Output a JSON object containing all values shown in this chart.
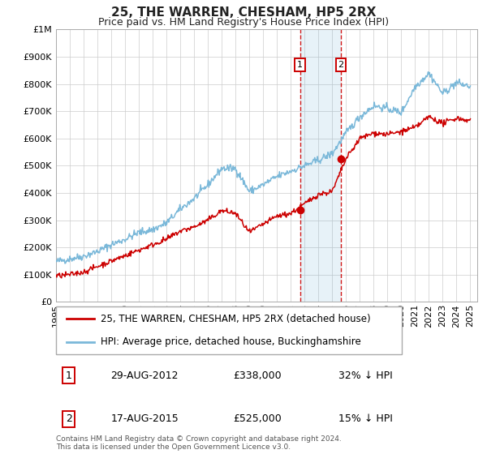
{
  "title": "25, THE WARREN, CHESHAM, HP5 2RX",
  "subtitle": "Price paid vs. HM Land Registry's House Price Index (HPI)",
  "legend_entry1": "25, THE WARREN, CHESHAM, HP5 2RX (detached house)",
  "legend_entry2": "HPI: Average price, detached house, Buckinghamshire",
  "footnote1": "Contains HM Land Registry data © Crown copyright and database right 2024.",
  "footnote2": "This data is licensed under the Open Government Licence v3.0.",
  "transaction1_label": "1",
  "transaction1_date": "29-AUG-2012",
  "transaction1_price": "£338,000",
  "transaction1_hpi": "32% ↓ HPI",
  "transaction2_label": "2",
  "transaction2_date": "17-AUG-2015",
  "transaction2_price": "£525,000",
  "transaction2_hpi": "15% ↓ HPI",
  "hpi_color": "#7ab8d9",
  "price_color": "#cc0000",
  "marker_color": "#cc0000",
  "transaction1_x": 2012.66,
  "transaction1_y": 338000,
  "transaction2_x": 2015.63,
  "transaction2_y": 525000,
  "shaded_region_start": 2012.66,
  "shaded_region_end": 2015.63,
  "vline1_x": 2012.66,
  "vline2_x": 2015.63,
  "ylim": [
    0,
    1000000
  ],
  "xlim_start": 1995,
  "xlim_end": 2025.5,
  "yticks": [
    0,
    100000,
    200000,
    300000,
    400000,
    500000,
    600000,
    700000,
    800000,
    900000,
    1000000
  ],
  "ytick_labels": [
    "£0",
    "£100K",
    "£200K",
    "£300K",
    "£400K",
    "£500K",
    "£600K",
    "£700K",
    "£800K",
    "£900K",
    "£1M"
  ],
  "background_color": "#ffffff",
  "grid_color": "#cccccc",
  "hpi_anchors_x": [
    1995,
    1996,
    1997,
    1998,
    1999,
    2000,
    2001,
    2002,
    2003,
    2004,
    2005,
    2006,
    2007,
    2008,
    2009,
    2010,
    2011,
    2012,
    2013,
    2014,
    2015,
    2016,
    2017,
    2018,
    2019,
    2020,
    2021,
    2022,
    2023,
    2024,
    2025
  ],
  "hpi_anchors_y": [
    148000,
    158000,
    168000,
    185000,
    210000,
    230000,
    255000,
    265000,
    290000,
    340000,
    380000,
    430000,
    490000,
    490000,
    405000,
    430000,
    460000,
    480000,
    500000,
    520000,
    545000,
    620000,
    680000,
    720000,
    710000,
    695000,
    790000,
    840000,
    765000,
    805000,
    790000
  ],
  "price_anchors_x": [
    1995,
    1996,
    1997,
    1998,
    1999,
    2000,
    2001,
    2002,
    2003,
    2004,
    2005,
    2006,
    2007,
    2008,
    2009,
    2010,
    2011,
    2012,
    2013,
    2014,
    2015,
    2016,
    2017,
    2018,
    2019,
    2020,
    2021,
    2022,
    2023,
    2024,
    2025
  ],
  "price_anchors_y": [
    95000,
    100000,
    110000,
    130000,
    150000,
    170000,
    190000,
    210000,
    230000,
    260000,
    275000,
    300000,
    335000,
    325000,
    255000,
    285000,
    315000,
    325000,
    360000,
    395000,
    405000,
    525000,
    600000,
    620000,
    615000,
    625000,
    640000,
    680000,
    655000,
    675000,
    665000
  ],
  "noise_seed": 42,
  "hpi_noise_std": 7000,
  "price_noise_std": 5000
}
